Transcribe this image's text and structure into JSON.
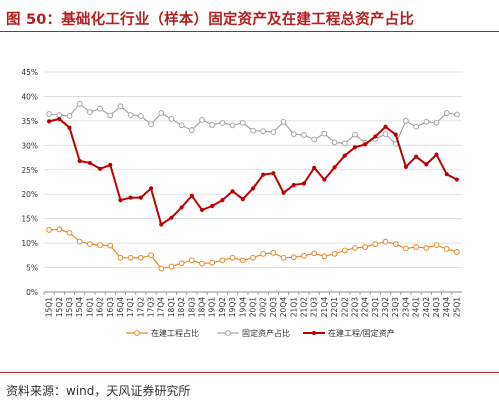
{
  "figure": {
    "title": "图 50：基础化工行业（样本）固定资产及在建工程总资产占比",
    "source": "资料来源：wind，天风证券研究所"
  },
  "colors": {
    "title_red": "#b41e1e",
    "construction": "#e8892a",
    "fixed_assets": "#a6a6a6",
    "ratio": "#c00000",
    "grid": "#d9d9d9"
  },
  "chart_data": {
    "type": "line",
    "title": "",
    "xlabel": "",
    "ylabel": "",
    "ylim": [
      0,
      45
    ],
    "yticks": [
      "0%",
      "5%",
      "10%",
      "15%",
      "20%",
      "25%",
      "30%",
      "35%",
      "40%",
      "45%"
    ],
    "grid": true,
    "legend_position": "bottom",
    "x": [
      "15Q1",
      "15Q2",
      "15Q3",
      "15Q4",
      "16Q1",
      "16Q2",
      "16Q3",
      "16Q4",
      "17Q1",
      "17Q2",
      "17Q3",
      "17Q4",
      "18Q1",
      "18Q2",
      "18Q3",
      "18Q4",
      "19Q1",
      "19Q2",
      "19Q3",
      "19Q4",
      "20Q1",
      "20Q2",
      "20Q3",
      "20Q4",
      "21Q1",
      "21Q2",
      "21Q3",
      "21Q4",
      "22Q1",
      "22Q2",
      "22Q3",
      "22Q4",
      "23Q1",
      "23Q2",
      "23Q3",
      "23Q4",
      "24Q1",
      "24Q2",
      "24Q3",
      "24Q4",
      "25Q1"
    ],
    "series": [
      {
        "name": "在建工程占比",
        "color": "#e8892a",
        "marker": "open-circle",
        "values": [
          12.7,
          12.8,
          12.1,
          10.3,
          9.8,
          9.6,
          9.5,
          7.0,
          7.0,
          7.0,
          7.5,
          4.8,
          5.2,
          5.9,
          6.5,
          5.8,
          6.0,
          6.5,
          7.0,
          6.5,
          7.0,
          7.8,
          8.0,
          7.0,
          7.1,
          7.4,
          7.9,
          7.3,
          7.8,
          8.5,
          9.0,
          9.2,
          9.8,
          10.3,
          9.8,
          8.9,
          9.2,
          9.0,
          9.6,
          8.8,
          8.2
        ]
      },
      {
        "name": "固定资产占比",
        "color": "#a6a6a6",
        "marker": "open-circle",
        "values": [
          36.4,
          36.2,
          36.0,
          38.5,
          36.8,
          37.5,
          36.1,
          38.0,
          36.2,
          36.0,
          34.3,
          36.6,
          35.4,
          34.1,
          33.1,
          35.2,
          34.2,
          34.6,
          34.1,
          34.6,
          33.0,
          32.9,
          32.7,
          34.8,
          32.3,
          32.1,
          31.2,
          32.4,
          30.6,
          30.4,
          32.2,
          30.5,
          31.3,
          32.3,
          30.3,
          35.0,
          33.8,
          34.8,
          34.6,
          36.6,
          36.3
        ]
      },
      {
        "name": "在建工程/固定资产",
        "color": "#c00000",
        "marker": "filled-circle",
        "values": [
          34.9,
          35.4,
          33.6,
          26.8,
          26.4,
          25.2,
          26.0,
          18.8,
          19.3,
          19.3,
          21.2,
          13.8,
          15.2,
          17.3,
          19.7,
          16.8,
          17.6,
          18.8,
          20.6,
          19.0,
          21.2,
          24.0,
          24.3,
          20.3,
          21.9,
          22.2,
          25.4,
          23.0,
          25.5,
          27.9,
          29.6,
          30.2,
          31.8,
          33.8,
          32.2,
          25.6,
          27.7,
          26.1,
          28.1,
          24.1,
          23.0
        ]
      }
    ]
  }
}
